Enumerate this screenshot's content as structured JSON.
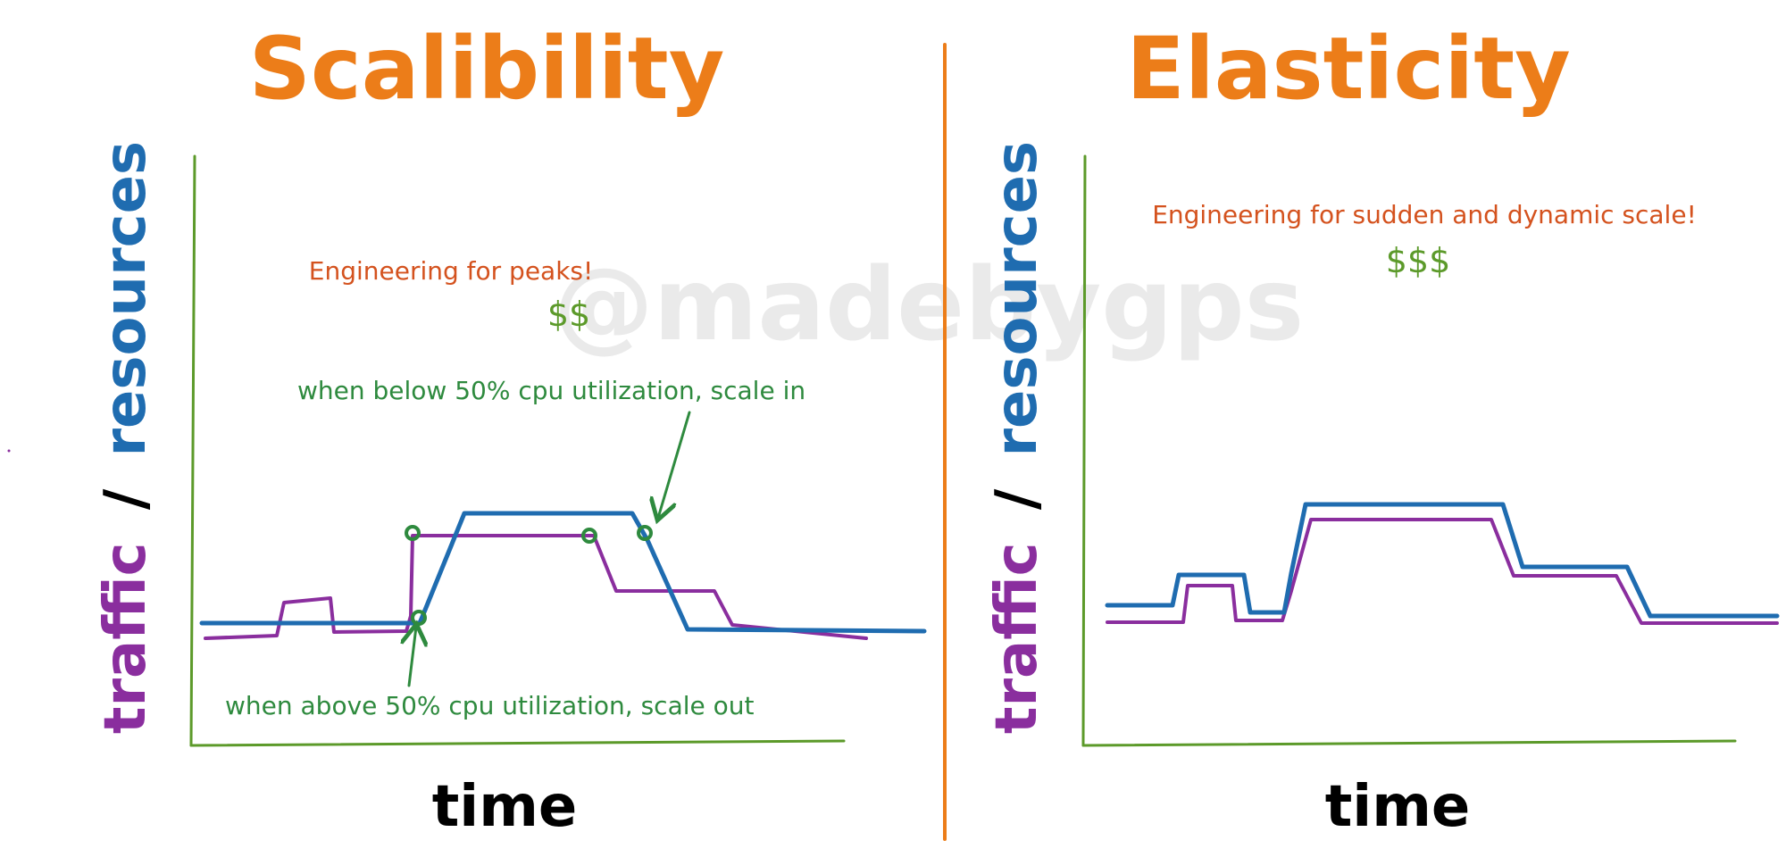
{
  "watermark": "@madebygps",
  "colors": {
    "title": "#ec7d19",
    "divider": "#ec7d19",
    "axis": "#5c9a2a",
    "traffic": "#8a2e9e",
    "resources": "#1f6cb0",
    "note": "#d4521e",
    "cost": "#5c9a2a",
    "annotation": "#2e8a3e",
    "xlabel": "#000000",
    "watermark": "#d9d9d9"
  },
  "left": {
    "title": "Scalibility",
    "ylabel_traffic": "traffic",
    "ylabel_sep": "/",
    "ylabel_resources": "resources",
    "xlabel": "time",
    "note": "Engineering for peaks!",
    "cost": "$$",
    "annotation_in": "when below 50% cpu utilization, scale in",
    "annotation_out": "when above 50% cpu utilization, scale out"
  },
  "right": {
    "title": "Elasticity",
    "ylabel_traffic": "traffic",
    "ylabel_sep": "/",
    "ylabel_resources": "resources",
    "xlabel": "time",
    "note": "Engineering for sudden and dynamic scale!",
    "cost": "$$$"
  }
}
